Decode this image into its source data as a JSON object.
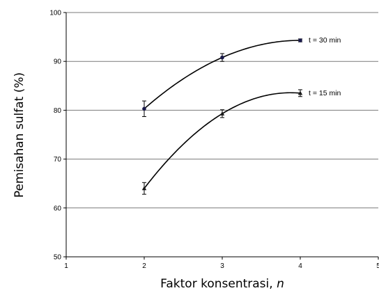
{
  "chart_data": {
    "type": "scatter",
    "xlabel": "Faktor konsentrasi, ",
    "xlabel_var": "n",
    "ylabel": "Pemisahan sulfat (%)",
    "xlim": [
      1,
      5
    ],
    "ylim": [
      50,
      100
    ],
    "xticks": [
      "1",
      "2",
      "3",
      "4",
      "5"
    ],
    "yticks": [
      "50",
      "60",
      "70",
      "80",
      "90",
      "100"
    ],
    "grid": "horizontal",
    "series": [
      {
        "name": "t = 30 min",
        "marker": "circle",
        "x": [
          2,
          3,
          4
        ],
        "y": [
          80.3,
          90.8,
          94.3
        ],
        "err": [
          1.6,
          0.8,
          0.3
        ],
        "color": "#1a1a4a"
      },
      {
        "name": "t = 15 min",
        "marker": "triangle",
        "x": [
          2,
          3,
          4
        ],
        "y": [
          64,
          79.3,
          83.5
        ],
        "err": [
          1.2,
          0.8,
          0.7
        ],
        "color": "#1a1a1a"
      }
    ]
  }
}
